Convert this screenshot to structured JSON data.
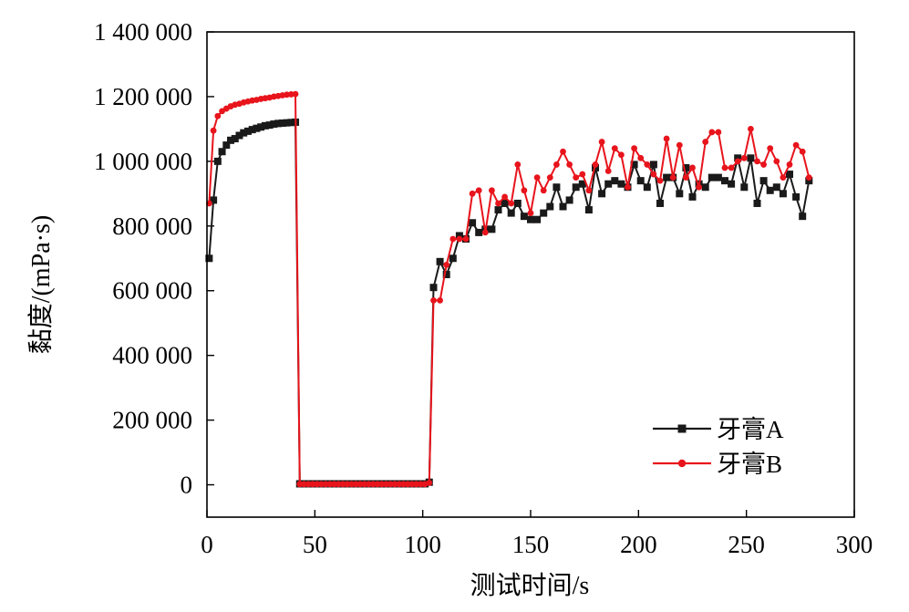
{
  "chart_data": {
    "type": "line",
    "xlabel": "测试时间/s",
    "ylabel": "黏度/(mPa·s)",
    "xlim": [
      0,
      300
    ],
    "ylim": [
      -100000,
      1400000
    ],
    "x_ticks": [
      0,
      50,
      100,
      150,
      200,
      250,
      300
    ],
    "x_tick_labels": [
      "0",
      "50",
      "100",
      "150",
      "200",
      "250",
      "300"
    ],
    "y_ticks": [
      0,
      200000,
      400000,
      600000,
      800000,
      1000000,
      1200000,
      1400000
    ],
    "y_tick_labels": [
      "0",
      "200 000",
      "400 000",
      "600 000",
      "800 000",
      "1 000 000",
      "1 200 000",
      "1 400 000"
    ],
    "grid": false,
    "legend_position": "bottom-right",
    "series": [
      {
        "name": "牙膏A",
        "color": "#1a1a1a",
        "marker": "square",
        "x": [
          1,
          3,
          5,
          7,
          9,
          11,
          13,
          15,
          17,
          19,
          21,
          23,
          25,
          27,
          29,
          31,
          33,
          35,
          37,
          39,
          41,
          43,
          45,
          47,
          49,
          51,
          53,
          55,
          57,
          59,
          61,
          63,
          65,
          67,
          69,
          71,
          73,
          75,
          77,
          79,
          81,
          83,
          85,
          87,
          89,
          91,
          93,
          95,
          97,
          99,
          101,
          103,
          105,
          108,
          111,
          114,
          117,
          120,
          123,
          126,
          129,
          132,
          135,
          138,
          141,
          144,
          147,
          150,
          153,
          156,
          159,
          162,
          165,
          168,
          171,
          174,
          177,
          180,
          183,
          186,
          189,
          192,
          195,
          198,
          201,
          204,
          207,
          210,
          213,
          216,
          219,
          222,
          225,
          228,
          231,
          234,
          237,
          240,
          243,
          246,
          249,
          252,
          255,
          258,
          261,
          264,
          267,
          270,
          273,
          276,
          279
        ],
        "values": [
          700000,
          880000,
          1000000,
          1030000,
          1050000,
          1065000,
          1070000,
          1080000,
          1088000,
          1093000,
          1098000,
          1102000,
          1106000,
          1110000,
          1112000,
          1115000,
          1117000,
          1118000,
          1119000,
          1120000,
          1121000,
          3000,
          3000,
          3000,
          3000,
          3000,
          3000,
          3000,
          3000,
          3000,
          3000,
          3000,
          3000,
          3000,
          3000,
          3000,
          3000,
          3000,
          3000,
          3000,
          3000,
          3000,
          3000,
          3000,
          3000,
          3000,
          3000,
          3000,
          3000,
          3000,
          3000,
          8000,
          610000,
          690000,
          650000,
          700000,
          770000,
          760000,
          810000,
          780000,
          790000,
          790000,
          850000,
          870000,
          840000,
          870000,
          830000,
          820000,
          820000,
          840000,
          860000,
          920000,
          860000,
          880000,
          920000,
          930000,
          850000,
          980000,
          900000,
          930000,
          940000,
          930000,
          920000,
          990000,
          940000,
          920000,
          990000,
          870000,
          950000,
          950000,
          900000,
          980000,
          890000,
          930000,
          920000,
          950000,
          950000,
          940000,
          930000,
          1010000,
          920000,
          1010000,
          870000,
          940000,
          910000,
          920000,
          900000,
          960000,
          890000,
          830000,
          940000
        ]
      },
      {
        "name": "牙膏B",
        "color": "#e8141c",
        "marker": "circle",
        "x": [
          1,
          3,
          5,
          7,
          9,
          11,
          13,
          15,
          17,
          19,
          21,
          23,
          25,
          27,
          29,
          31,
          33,
          35,
          37,
          39,
          41,
          43,
          45,
          47,
          49,
          51,
          53,
          55,
          57,
          59,
          61,
          63,
          65,
          67,
          69,
          71,
          73,
          75,
          77,
          79,
          81,
          83,
          85,
          87,
          89,
          91,
          93,
          95,
          97,
          99,
          101,
          103,
          105,
          108,
          111,
          114,
          117,
          120,
          123,
          126,
          129,
          132,
          135,
          138,
          141,
          144,
          147,
          150,
          153,
          156,
          159,
          162,
          165,
          168,
          171,
          174,
          177,
          180,
          183,
          186,
          189,
          192,
          195,
          198,
          201,
          204,
          207,
          210,
          213,
          216,
          219,
          222,
          225,
          228,
          231,
          234,
          237,
          240,
          243,
          246,
          249,
          252,
          255,
          258,
          261,
          264,
          267,
          270,
          273,
          276,
          279
        ],
        "values": [
          870000,
          1095000,
          1140000,
          1155000,
          1163000,
          1170000,
          1175000,
          1178000,
          1182000,
          1185000,
          1188000,
          1190000,
          1193000,
          1195000,
          1197000,
          1200000,
          1202000,
          1204000,
          1206000,
          1207000,
          1208000,
          2000,
          2000,
          2000,
          2000,
          2000,
          2000,
          2000,
          2000,
          2000,
          2000,
          2000,
          2000,
          2000,
          2000,
          2000,
          2000,
          2000,
          2000,
          2000,
          2000,
          2000,
          2000,
          2000,
          2000,
          2000,
          2000,
          2000,
          2000,
          2000,
          2000,
          6000,
          570000,
          570000,
          680000,
          760000,
          760000,
          760000,
          900000,
          910000,
          780000,
          910000,
          870000,
          890000,
          870000,
          990000,
          910000,
          840000,
          950000,
          910000,
          950000,
          990000,
          1030000,
          990000,
          950000,
          960000,
          910000,
          990000,
          1060000,
          970000,
          1040000,
          1020000,
          920000,
          1040000,
          1010000,
          990000,
          960000,
          940000,
          1070000,
          950000,
          1050000,
          950000,
          980000,
          920000,
          1060000,
          1090000,
          1090000,
          980000,
          980000,
          1000000,
          1010000,
          1100000,
          1000000,
          990000,
          1040000,
          1000000,
          950000,
          990000,
          1050000,
          1030000,
          950000
        ]
      }
    ]
  }
}
